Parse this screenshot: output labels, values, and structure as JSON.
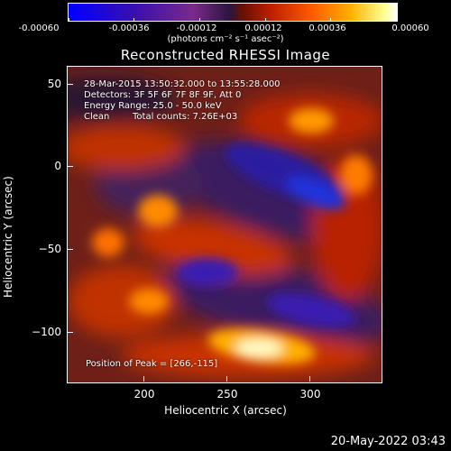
{
  "colorbar": {
    "tick_labels": [
      "-0.00060",
      "-0.00036",
      "-0.00012",
      "0.00012",
      "0.00036",
      "0.00060"
    ],
    "unit_label": "(photons cm⁻² s⁻¹ asec⁻²)"
  },
  "title": "Reconstructed RHESSI Image",
  "info": {
    "time": "28-Mar-2015 13:50:32.000 to 13:55:28.000",
    "detectors": "Detectors: 3F 5F 6F 7F 8F 9F, Att 0",
    "energy": "Energy Range: 25.0 - 50.0 keV",
    "clean": "Clean",
    "counts": "Total counts: 7.26E+03",
    "peak": "Position of Peak = [266,-115]"
  },
  "axes": {
    "xlabel": "Heliocentric X (arcsec)",
    "ylabel": "Heliocentric Y (arcsec)",
    "xticks": [
      "200",
      "250",
      "300"
    ],
    "yticks": [
      "50",
      "0",
      "−50",
      "−100"
    ]
  },
  "timestamp": "20-May-2022 03:43",
  "colors": {
    "background": "#000000",
    "text": "#ffffff"
  }
}
